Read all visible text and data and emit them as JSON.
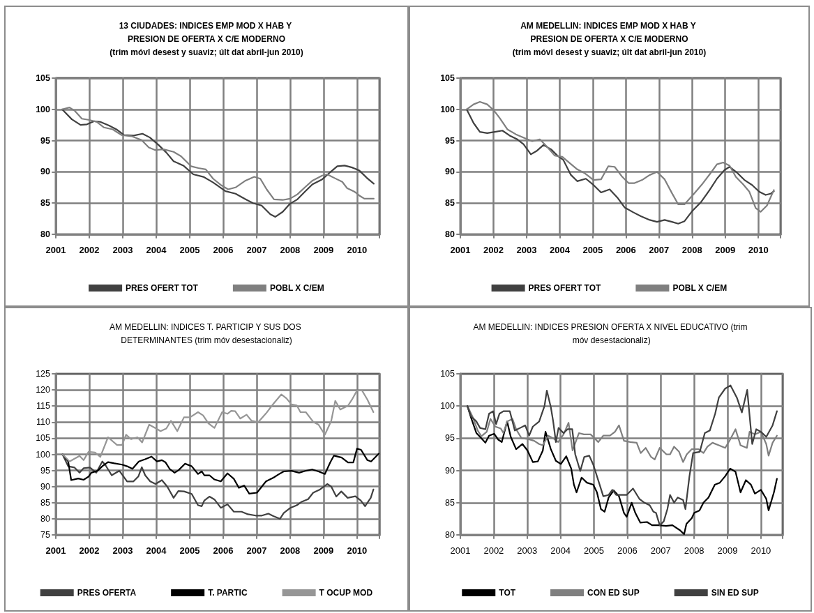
{
  "chart_data": [
    {
      "type": "line",
      "title": "13 CIUDADES: INDICES EMP MOD X HAB Y PRESION DE OFERTA X C/E MODERNO",
      "subtitle": "(trim móvl desest y suaviz; últ dat abril-jun 2010)",
      "xlim": [
        2001,
        2010.67
      ],
      "xticks": [
        2001,
        2002,
        2003,
        2004,
        2005,
        2006,
        2007,
        2008,
        2009,
        2010
      ],
      "ylim": [
        80,
        105
      ],
      "yticks": [
        80,
        85,
        90,
        95,
        100,
        105
      ],
      "grid": true,
      "legend": "bottom",
      "marker": "none",
      "line_style": "solid",
      "series": [
        {
          "name": "PRES OFERT TOT",
          "color": "#404040",
          "x": [
            2001.19,
            2001.48,
            2001.74,
            2001.93,
            2002.15,
            2002.33,
            2002.59,
            2002.81,
            2003.04,
            2003.33,
            2003.59,
            2003.81,
            2004.07,
            2004.3,
            2004.52,
            2004.81,
            2005.11,
            2005.41,
            2005.7,
            2006.07,
            2006.37,
            2006.67,
            2006.89,
            2007.15,
            2007.41,
            2007.56,
            2007.78,
            2008,
            2008.22,
            2008.44,
            2008.67,
            2008.96,
            2009.19,
            2009.41,
            2009.63,
            2009.85,
            2010.07,
            2010.3,
            2010.5
          ],
          "values": [
            100,
            98.4,
            97.5,
            97.6,
            98.1,
            98,
            97.4,
            96.8,
            95.9,
            95.8,
            96.1,
            95.5,
            94.3,
            93.1,
            91.7,
            91,
            89.6,
            89.2,
            88.3,
            86.9,
            86.5,
            85.6,
            85,
            84.6,
            83.2,
            82.8,
            83.6,
            84.9,
            85.6,
            86.8,
            88,
            88.8,
            89.9,
            90.9,
            91,
            90.7,
            90.2,
            89,
            88.1
          ]
        },
        {
          "name": "POBL X C/EM",
          "color": "#7f7f7f",
          "x": [
            2001.19,
            2001.41,
            2001.56,
            2001.78,
            2002,
            2002.22,
            2002.44,
            2002.7,
            2002.96,
            2003.26,
            2003.56,
            2003.78,
            2003.96,
            2004.22,
            2004.52,
            2004.74,
            2005.04,
            2005.26,
            2005.48,
            2005.7,
            2005.93,
            2006.15,
            2006.37,
            2006.67,
            2006.93,
            2007.11,
            2007.3,
            2007.52,
            2007.78,
            2008,
            2008.22,
            2008.44,
            2008.67,
            2008.96,
            2009.11,
            2009.33,
            2009.56,
            2009.7,
            2009.93,
            2010.07,
            2010.22,
            2010.5
          ],
          "values": [
            100,
            100.3,
            99.8,
            98.5,
            98.3,
            98,
            97.1,
            96.8,
            95.9,
            95.7,
            95.1,
            93.9,
            93.5,
            93.6,
            93.2,
            92.5,
            90.9,
            90.6,
            90.4,
            88.9,
            87.9,
            87.2,
            87.5,
            88.6,
            89.2,
            88.9,
            87.2,
            85.6,
            85.5,
            85.7,
            86.4,
            87.5,
            88.6,
            89.4,
            89.6,
            89,
            88.4,
            87.4,
            86.8,
            86.2,
            85.7,
            85.7
          ]
        }
      ]
    },
    {
      "type": "line",
      "title": "AM MEDELLIN: INDICES EMP MOD X HAB Y PRESION DE OFERTA X C/E MODERNO",
      "subtitle": "(trim móvl desest y suaviz; últ dat abril-jun 2010)",
      "xlim": [
        2001,
        2010.67
      ],
      "xticks": [
        2001,
        2002,
        2003,
        2004,
        2005,
        2006,
        2007,
        2008,
        2009,
        2010
      ],
      "ylim": [
        80,
        105
      ],
      "yticks": [
        80,
        85,
        90,
        95,
        100,
        105
      ],
      "grid": true,
      "legend": "bottom",
      "marker": "none",
      "line_style": "solid",
      "series": [
        {
          "name": "PRES OFERT TOT",
          "color": "#404040",
          "x": [
            2001.19,
            2001.4,
            2001.59,
            2001.81,
            2002.04,
            2002.27,
            2002.49,
            2002.72,
            2002.91,
            2003.13,
            2003.32,
            2003.51,
            2003.74,
            2003.93,
            2004.11,
            2004.34,
            2004.53,
            2004.79,
            2005.02,
            2005.25,
            2005.51,
            2005.74,
            2005.96,
            2006.23,
            2006.45,
            2006.72,
            2006.94,
            2007.17,
            2007.39,
            2007.58,
            2007.77,
            2008,
            2008.26,
            2008.53,
            2008.75,
            2008.98,
            2009.13,
            2009.35,
            2009.58,
            2009.81,
            2010.03,
            2010.22,
            2010.37,
            2010.47
          ],
          "values": [
            100,
            97.8,
            96.4,
            96.2,
            96.4,
            96.6,
            95.8,
            95.2,
            94.4,
            92.8,
            93.4,
            94.3,
            93.6,
            92.6,
            91.9,
            89.5,
            88.5,
            88.9,
            87.9,
            86.7,
            87.2,
            85.9,
            84.3,
            83.5,
            82.9,
            82.3,
            82,
            82.3,
            82,
            81.7,
            82.1,
            83.7,
            85.1,
            87.1,
            88.9,
            90.3,
            90.8,
            89.9,
            88.7,
            87.9,
            86.8,
            86.3,
            86.5,
            86.9
          ]
        },
        {
          "name": "POBL X C/EM",
          "color": "#7f7f7f",
          "x": [
            2001.19,
            2001.4,
            2001.59,
            2001.81,
            2002,
            2002.19,
            2002.42,
            2002.68,
            2002.94,
            2003.17,
            2003.4,
            2003.62,
            2003.85,
            2004.08,
            2004.26,
            2004.53,
            2004.75,
            2005.02,
            2005.25,
            2005.47,
            2005.66,
            2005.89,
            2006.08,
            2006.26,
            2006.49,
            2006.72,
            2006.94,
            2007.17,
            2007.39,
            2007.58,
            2007.77,
            2008.04,
            2008.3,
            2008.53,
            2008.75,
            2008.94,
            2009.13,
            2009.32,
            2009.54,
            2009.73,
            2009.92,
            2010.07,
            2010.26,
            2010.47
          ],
          "values": [
            100,
            100.8,
            101.2,
            100.8,
            99.9,
            98.6,
            96.8,
            96,
            95.4,
            94.9,
            95.2,
            94,
            92.6,
            92.4,
            91.6,
            90.4,
            89.8,
            88.7,
            88.8,
            90.9,
            90.8,
            89.2,
            88.2,
            88.2,
            88.7,
            89.5,
            90,
            88.8,
            86.6,
            84.8,
            84.8,
            86.4,
            88,
            89.6,
            91.2,
            91.5,
            91,
            89.2,
            88,
            86.8,
            84.2,
            83.6,
            84.6,
            87.1
          ]
        }
      ]
    },
    {
      "type": "line",
      "title": "AM MEDELLIN: INDICES T. PARTICIP Y SUS DOS DETERMINANTES (trim móv desestacionaliz)",
      "xlim": [
        2001,
        2010.67
      ],
      "xticks": [
        2001,
        2002,
        2003,
        2004,
        2005,
        2006,
        2007,
        2008,
        2009,
        2010
      ],
      "ylim": [
        75,
        125
      ],
      "yticks": [
        75,
        80,
        85,
        90,
        95,
        100,
        105,
        110,
        115,
        120,
        125
      ],
      "grid": true,
      "legend": "bottom",
      "marker": "none",
      "line_style": "solid",
      "series": [
        {
          "name": "PRES OFERTA",
          "color": "#404040",
          "x": [
            2001.2,
            2001.37,
            2001.56,
            2001.71,
            2001.83,
            2002.02,
            2002.21,
            2002.39,
            2002.48,
            2002.67,
            2002.9,
            2003.13,
            2003.32,
            2003.47,
            2003.57,
            2003.67,
            2003.82,
            2003.98,
            2004.17,
            2004.33,
            2004.52,
            2004.66,
            2004.83,
            2005.06,
            2005.25,
            2005.36,
            2005.44,
            2005.59,
            2005.74,
            2005.93,
            2006.13,
            2006.32,
            2006.55,
            2006.74,
            2006.97,
            2007.16,
            2007.35,
            2007.51,
            2007.7,
            2007.81,
            2008.01,
            2008.2,
            2008.35,
            2008.54,
            2008.69,
            2008.88,
            2009.11,
            2009.23,
            2009.38,
            2009.53,
            2009.72,
            2009.95,
            2010.11,
            2010.24,
            2010.41,
            2010.49
          ],
          "values": [
            100,
            96.3,
            95.9,
            94.3,
            95.7,
            95.9,
            94.3,
            97.8,
            96.7,
            93.5,
            94.9,
            91.6,
            91.6,
            93.2,
            96,
            93.5,
            91.6,
            90.8,
            92,
            90,
            86.5,
            88.6,
            88.5,
            87.7,
            84.2,
            83.9,
            85.7,
            86.9,
            86,
            83.4,
            84.5,
            82.2,
            82.2,
            81.4,
            81,
            81,
            81.6,
            80.8,
            80,
            81.8,
            83.4,
            84.2,
            85.3,
            86.1,
            88.1,
            89,
            90.8,
            90,
            86.9,
            88.5,
            86.5,
            87,
            85.7,
            83.9,
            86.5,
            89.1
          ]
        },
        {
          "name": "T. PARTIC",
          "color": "#000000",
          "x": [
            2001.2,
            2001.37,
            2001.46,
            2001.67,
            2001.83,
            2001.98,
            2002.06,
            2002.25,
            2002.4,
            2002.56,
            2002.75,
            2002.98,
            2003.13,
            2003.29,
            2003.48,
            2003.67,
            2003.86,
            2004.02,
            2004.17,
            2004.28,
            2004.4,
            2004.55,
            2004.67,
            2004.86,
            2005.06,
            2005.25,
            2005.36,
            2005.44,
            2005.59,
            2005.74,
            2005.93,
            2006.13,
            2006.32,
            2006.47,
            2006.63,
            2006.78,
            2007.01,
            2007.28,
            2007.51,
            2007.66,
            2007.81,
            2008.04,
            2008.27,
            2008.47,
            2008.66,
            2008.85,
            2009.04,
            2009.2,
            2009.31,
            2009.54,
            2009.73,
            2009.89,
            2010,
            2010.12,
            2010.31,
            2010.42,
            2010.65
          ],
          "values": [
            100,
            97.8,
            92,
            92.5,
            92.1,
            93.1,
            94.3,
            94.9,
            96.4,
            97.6,
            97.2,
            96.8,
            96.3,
            95.5,
            97.8,
            98.5,
            99.3,
            97.8,
            98.2,
            97.5,
            95.5,
            94.3,
            95.1,
            97.1,
            96.3,
            93.9,
            94.7,
            93.5,
            93.5,
            92.2,
            91.6,
            94.1,
            92.4,
            89.6,
            90.3,
            87.8,
            88.1,
            91.6,
            92.8,
            93.8,
            94.7,
            94.9,
            94.3,
            94.9,
            95.3,
            94.7,
            93.9,
            97.5,
            99.6,
            99,
            97.5,
            97.5,
            101.8,
            101.4,
            98.2,
            97.8,
            100.2
          ]
        },
        {
          "name": "T OCUP MOD",
          "color": "#969696",
          "x": [
            2001.2,
            2001.41,
            2001.71,
            2001.83,
            2001.98,
            2002.17,
            2002.33,
            2002.56,
            2002.83,
            2002.98,
            2003.1,
            2003.25,
            2003.44,
            2003.58,
            2003.79,
            2004,
            2004.13,
            2004.3,
            2004.44,
            2004.63,
            2004.83,
            2005.01,
            2005.25,
            2005.4,
            2005.56,
            2005.74,
            2005.97,
            2006.13,
            2006.24,
            2006.36,
            2006.51,
            2006.7,
            2006.85,
            2007.05,
            2007.28,
            2007.51,
            2007.74,
            2007.89,
            2008.04,
            2008.2,
            2008.31,
            2008.47,
            2008.7,
            2008.85,
            2009.04,
            2009.23,
            2009.35,
            2009.5,
            2009.73,
            2009.85,
            2010,
            2010.15,
            2010.31,
            2010.49
          ],
          "values": [
            100,
            97.8,
            99.5,
            98.2,
            100.8,
            100.6,
            99.2,
            105.3,
            102.9,
            102.9,
            106.1,
            104.7,
            105.3,
            103.7,
            109.2,
            108,
            107.2,
            108,
            110.4,
            107.2,
            111.5,
            111.5,
            113.1,
            112.1,
            109.6,
            108.2,
            113.1,
            112.6,
            113.5,
            113.4,
            111.1,
            112.3,
            110.4,
            110,
            112.7,
            115.8,
            118.6,
            117.4,
            115.5,
            115.2,
            113.1,
            113.1,
            110,
            109.2,
            106.1,
            110.4,
            116.6,
            113.9,
            115.1,
            117,
            119.8,
            119.8,
            117,
            113.1
          ]
        }
      ]
    },
    {
      "type": "line",
      "title": "AM MEDELLIN: INDICES PRESION OFERTA X NIVEL EDUCATIVO (trim móv desestacionaliz)",
      "xlim": [
        2001,
        2010.65
      ],
      "xticks": [
        2001,
        2002,
        2003,
        2004,
        2005,
        2006,
        2007,
        2008,
        2009,
        2010
      ],
      "ylim": [
        80,
        105
      ],
      "yticks": [
        80,
        85,
        90,
        95,
        100,
        105
      ],
      "grid": true,
      "legend": "bottom",
      "marker": "none",
      "line_style": "solid",
      "series": [
        {
          "name": "TOT",
          "color": "#000000",
          "x": [
            2001.21,
            2001.32,
            2001.48,
            2001.63,
            2001.75,
            2001.86,
            2002.01,
            2002.13,
            2002.24,
            2002.4,
            2002.51,
            2002.67,
            2002.86,
            2003.01,
            2003.17,
            2003.32,
            2003.47,
            2003.55,
            2003.71,
            2003.86,
            2004.01,
            2004.17,
            2004.32,
            2004.4,
            2004.48,
            2004.63,
            2004.79,
            2004.98,
            2005.09,
            2005.21,
            2005.32,
            2005.44,
            2005.59,
            2005.75,
            2005.9,
            2005.98,
            2006.13,
            2006.24,
            2006.39,
            2006.59,
            2006.74,
            2006.93,
            2007.16,
            2007.35,
            2007.58,
            2007.7,
            2007.77,
            2007.93,
            2008,
            2008.16,
            2008.28,
            2008.43,
            2008.62,
            2008.77,
            2008.93,
            2009.08,
            2009.24,
            2009.39,
            2009.55,
            2009.7,
            2009.82,
            2010,
            2010.16,
            2010.23,
            2010.39,
            2010.48
          ],
          "values": [
            100,
            98.2,
            95.8,
            95,
            94.3,
            95.4,
            95.7,
            94.8,
            94.4,
            97.6,
            95.2,
            93.3,
            94.1,
            93.1,
            91.3,
            91.4,
            93.1,
            96,
            93.3,
            91.5,
            91,
            92.2,
            90.3,
            87.8,
            86.6,
            88.9,
            88.1,
            87.8,
            86.6,
            84,
            83.6,
            85.8,
            86.9,
            86,
            83.4,
            82.8,
            85,
            83.4,
            81.9,
            82,
            81.5,
            81.5,
            81.4,
            81.5,
            80.7,
            80.1,
            81.7,
            82.6,
            83.4,
            83.8,
            85,
            85.8,
            87.8,
            88.1,
            89.1,
            90.3,
            89.8,
            86.6,
            88.5,
            87.8,
            86.4,
            87,
            85.6,
            83.8,
            86.6,
            88.7
          ]
        },
        {
          "name": "CON ED SUP",
          "color": "#7f7f7f",
          "x": [
            2001.21,
            2001.36,
            2001.52,
            2001.63,
            2001.79,
            2001.9,
            2002.05,
            2002.21,
            2002.29,
            2002.4,
            2002.56,
            2002.67,
            2002.83,
            2003.01,
            2003.21,
            2003.36,
            2003.47,
            2003.63,
            2003.78,
            2003.93,
            2004.09,
            2004.24,
            2004.36,
            2004.55,
            2004.7,
            2004.9,
            2005.13,
            2005.28,
            2005.48,
            2005.63,
            2005.75,
            2005.9,
            2006.09,
            2006.28,
            2006.4,
            2006.55,
            2006.71,
            2006.82,
            2006.97,
            2007.17,
            2007.28,
            2007.4,
            2007.55,
            2007.67,
            2007.78,
            2007.93,
            2008.13,
            2008.28,
            2008.4,
            2008.55,
            2008.74,
            2008.93,
            2009.08,
            2009.24,
            2009.39,
            2009.58,
            2009.66,
            2009.82,
            2010,
            2010.16,
            2010.23,
            2010.35,
            2010.48
          ],
          "values": [
            100,
            98.4,
            96.2,
            95.3,
            96,
            98,
            96.8,
            96.5,
            95.8,
            97.6,
            98,
            96.4,
            95,
            94.9,
            94.6,
            94.1,
            93.9,
            95.4,
            95,
            94.4,
            95.6,
            97.4,
            93.1,
            95.8,
            95.6,
            95.6,
            94.4,
            95.4,
            95.4,
            96,
            97,
            94.6,
            94.4,
            94.3,
            92.7,
            93.5,
            92.1,
            91.7,
            93.5,
            92.5,
            92.5,
            93.7,
            92.9,
            91.3,
            92.5,
            93.3,
            93.3,
            92.7,
            93.7,
            94.3,
            93.9,
            93.5,
            94.8,
            96.4,
            93.9,
            93.5,
            96,
            95.6,
            96,
            94.1,
            92.3,
            94.3,
            95.4
          ]
        },
        {
          "name": "SIN ED SUP",
          "color": "#404040",
          "x": [
            2001.21,
            2001.32,
            2001.48,
            2001.59,
            2001.75,
            2001.86,
            2001.98,
            2002.07,
            2002.17,
            2002.29,
            2002.48,
            2002.63,
            2002.79,
            2002.94,
            2003.06,
            2003.17,
            2003.36,
            2003.52,
            2003.59,
            2003.71,
            2003.78,
            2003.86,
            2003.94,
            2004.09,
            2004.21,
            2004.35,
            2004.44,
            2004.59,
            2004.71,
            2004.86,
            2004.98,
            2005.17,
            2005.28,
            2005.44,
            2005.55,
            2005.67,
            2005.82,
            2005.98,
            2006.17,
            2006.36,
            2006.51,
            2006.67,
            2006.78,
            2006.86,
            2006.97,
            2007.09,
            2007.2,
            2007.28,
            2007.4,
            2007.51,
            2007.67,
            2007.74,
            2007.86,
            2007.97,
            2008.17,
            2008.32,
            2008.47,
            2008.63,
            2008.74,
            2008.93,
            2009.09,
            2009.28,
            2009.43,
            2009.59,
            2009.74,
            2009.86,
            2010,
            2010.16,
            2010.35,
            2010.48
          ],
          "values": [
            100,
            98.4,
            97.6,
            96.6,
            96.4,
            98.8,
            99.2,
            97.2,
            98.8,
            99.2,
            99.2,
            96.2,
            96.6,
            97,
            95.4,
            96.8,
            97.6,
            100,
            102.4,
            99.8,
            97.6,
            94.4,
            96.6,
            95.8,
            96.4,
            96.4,
            92.5,
            89.9,
            92.1,
            92.3,
            90.9,
            87.8,
            86,
            86.2,
            87,
            86.2,
            86.2,
            86.2,
            87.2,
            85.6,
            85,
            84.6,
            83.6,
            83.4,
            81.5,
            82.1,
            84,
            86.2,
            85,
            85.8,
            85.4,
            84,
            89.1,
            92.7,
            92.9,
            95.8,
            96.2,
            98.8,
            101.3,
            102.7,
            103.2,
            101.3,
            99,
            102.5,
            94.1,
            96.4,
            96,
            95.2,
            97,
            99.2
          ]
        }
      ]
    }
  ]
}
